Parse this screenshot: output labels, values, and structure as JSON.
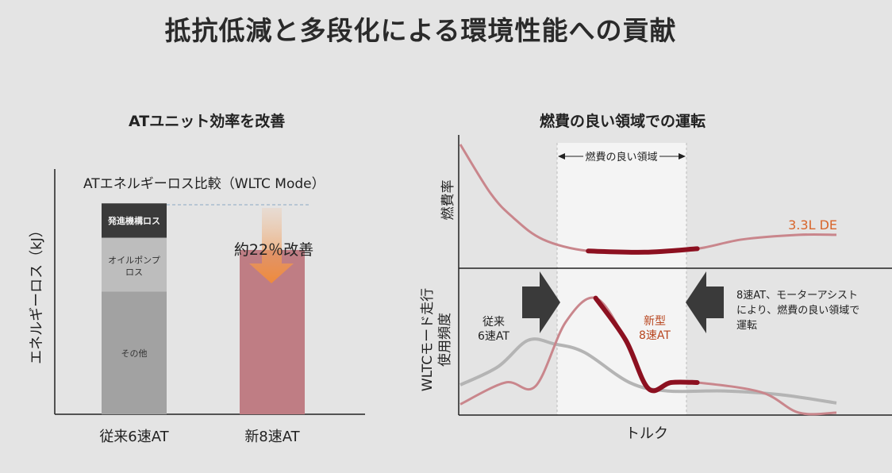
{
  "title": "抵抗低減と多段化による環境性能への貢献",
  "colors": {
    "background": "#e4e4e4",
    "bar_dark": "#3a3a3a",
    "bar_mid": "#bdbdbd",
    "bar_light": "#a2a2a2",
    "bar_new": "#bf7d84",
    "arrow_orange": "#ef8a3a",
    "curve_dark_red": "#8c1020",
    "curve_pink": "#c9868c",
    "curve_gray": "#b4b4b4",
    "label_orange": "#d8652b",
    "label_dark_orange": "#b8461f"
  },
  "chart_data": [
    {
      "type": "bar",
      "title": "ATユニット効率を改善",
      "subtitle": "ATエネルギーロス比較（WLTC Mode）",
      "ylabel": "エネルギーロス（kJ）",
      "xlabel": "",
      "ylim": [
        0,
        100
      ],
      "categories": [
        "従来6速AT",
        "新8速AT"
      ],
      "series": [
        {
          "name": "その他",
          "values": [
            50,
            0
          ]
        },
        {
          "name": "オイルポンプロス",
          "values": [
            22,
            0
          ]
        },
        {
          "name": "発進機構ロス",
          "values": [
            14,
            0
          ]
        },
        {
          "name": "新8速AT",
          "values": [
            0,
            67
          ]
        }
      ],
      "stack_labels": {
        "other": "その他",
        "oil_pump": "オイルポンプ",
        "oil_pump_2": "ロス",
        "launch": "発進機構ロス"
      },
      "annotation": {
        "text": "約22％改善",
        "improvement_percent": 22
      }
    },
    {
      "type": "line",
      "title": "燃費の良い領域での運転",
      "xlabel": "トルク",
      "panels": [
        {
          "ylabel": "燃費率",
          "series": [
            {
              "name": "3.3L DE",
              "x": [
                0,
                8,
                14,
                22,
                34,
                49,
                63,
                75,
                90,
                100
              ],
              "y": [
                100,
                58,
                37,
                18,
                8,
                7,
                10,
                18,
                22,
                22
              ]
            }
          ],
          "region_label": "燃費の良い領域",
          "good_region": [
            34,
            63
          ]
        },
        {
          "ylabel": "WLTCモード走行",
          "ylabel2": "使用頻度",
          "series": [
            {
              "name": "従来6速AT",
              "label_line1": "従来",
              "label_line2": "6速AT",
              "x": [
                0,
                10,
                18,
                25,
                33,
                45,
                55,
                70,
                85,
                100
              ],
              "y": [
                23,
                38,
                60,
                57,
                50,
                25,
                18,
                18,
                15,
                8
              ]
            },
            {
              "name": "新型8速AT",
              "label_line1": "新型",
              "label_line2": "8速AT",
              "x": [
                0,
                12,
                20,
                28,
                36,
                44,
                50,
                56,
                63,
                80,
                90,
                100
              ],
              "y": [
                7,
                25,
                22,
                75,
                95,
                60,
                20,
                25,
                25,
                17,
                0,
                0
              ]
            }
          ],
          "annotation_lines": [
            "8速AT、モーターアシスト",
            "により、燃費の良い領域で",
            "運転"
          ]
        }
      ]
    }
  ]
}
